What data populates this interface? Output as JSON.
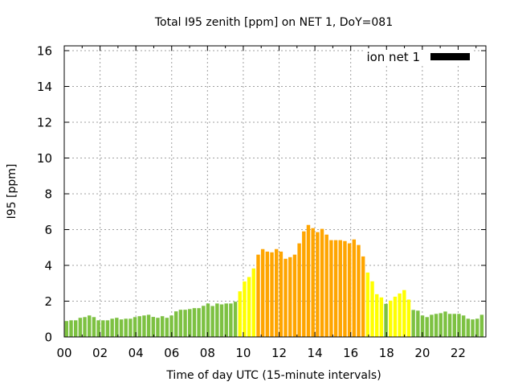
{
  "chart_data": {
    "type": "bar",
    "title": "Total I95 zenith [ppm] on NET 1, DoY=081",
    "xlabel": "Time of day UTC (15-minute intervals)",
    "ylabel": "I95 [ppm]",
    "xlim": [
      0,
      23.55
    ],
    "ylim": [
      0,
      16.27
    ],
    "grid": true,
    "bar_interval_hours": 0.25,
    "x_ticks": [
      {
        "value": 0,
        "label": "00"
      },
      {
        "value": 2,
        "label": "02"
      },
      {
        "value": 4,
        "label": "04"
      },
      {
        "value": 6,
        "label": "06"
      },
      {
        "value": 8,
        "label": "08"
      },
      {
        "value": 10,
        "label": "10"
      },
      {
        "value": 12,
        "label": "12"
      },
      {
        "value": 14,
        "label": "14"
      },
      {
        "value": 16,
        "label": "16"
      },
      {
        "value": 18,
        "label": "18"
      },
      {
        "value": 20,
        "label": "20"
      },
      {
        "value": 22,
        "label": "22"
      }
    ],
    "y_ticks": [
      {
        "value": 0,
        "label": "0"
      },
      {
        "value": 2,
        "label": "2"
      },
      {
        "value": 4,
        "label": "4"
      },
      {
        "value": 6,
        "label": "6"
      },
      {
        "value": 8,
        "label": "8"
      },
      {
        "value": 10,
        "label": "10"
      },
      {
        "value": 12,
        "label": "12"
      },
      {
        "value": 14,
        "label": "14"
      },
      {
        "value": 16,
        "label": "16"
      }
    ],
    "legend": {
      "position": "top-right",
      "entries": [
        {
          "label": "ion net 1",
          "color": "#000000"
        }
      ]
    },
    "level_colors": {
      "low": "#7dc142",
      "moderate": "#ffff00",
      "high": "#ffa500"
    },
    "values": [
      0.89,
      0.93,
      0.93,
      1.07,
      1.11,
      1.2,
      1.11,
      0.93,
      0.93,
      0.93,
      1.02,
      1.07,
      0.98,
      1.02,
      1.02,
      1.11,
      1.16,
      1.2,
      1.24,
      1.12,
      1.07,
      1.16,
      1.07,
      1.2,
      1.43,
      1.52,
      1.52,
      1.56,
      1.61,
      1.61,
      1.74,
      1.87,
      1.73,
      1.87,
      1.82,
      1.87,
      1.87,
      1.97,
      2.55,
      3.1,
      3.35,
      3.83,
      4.6,
      4.91,
      4.77,
      4.73,
      4.91,
      4.77,
      4.37,
      4.46,
      4.6,
      5.23,
      5.9,
      6.26,
      6.08,
      5.86,
      6.04,
      5.72,
      5.41,
      5.41,
      5.41,
      5.36,
      5.23,
      5.45,
      5.14,
      4.5,
      3.6,
      3.11,
      2.39,
      2.21,
      1.85,
      2.03,
      2.25,
      2.43,
      2.62,
      2.09,
      1.51,
      1.47,
      1.2,
      1.11,
      1.24,
      1.29,
      1.33,
      1.42,
      1.29,
      1.29,
      1.29,
      1.2,
      1.02,
      0.98,
      1.02,
      1.24
    ],
    "levels": [
      "low",
      "low",
      "low",
      "low",
      "low",
      "low",
      "low",
      "low",
      "low",
      "low",
      "low",
      "low",
      "low",
      "low",
      "low",
      "low",
      "low",
      "low",
      "low",
      "low",
      "low",
      "low",
      "low",
      "low",
      "low",
      "low",
      "low",
      "low",
      "low",
      "low",
      "low",
      "low",
      "low",
      "low",
      "low",
      "low",
      "low",
      "low",
      "moderate",
      "moderate",
      "moderate",
      "moderate",
      "high",
      "high",
      "high",
      "high",
      "high",
      "high",
      "high",
      "high",
      "high",
      "high",
      "high",
      "high",
      "high",
      "high",
      "high",
      "high",
      "high",
      "high",
      "high",
      "high",
      "high",
      "high",
      "high",
      "high",
      "moderate",
      "moderate",
      "moderate",
      "moderate",
      "low",
      "moderate",
      "moderate",
      "moderate",
      "moderate",
      "moderate",
      "low",
      "low",
      "low",
      "low",
      "low",
      "low",
      "low",
      "low",
      "low",
      "low",
      "low",
      "low",
      "low",
      "low",
      "low",
      "low"
    ]
  }
}
